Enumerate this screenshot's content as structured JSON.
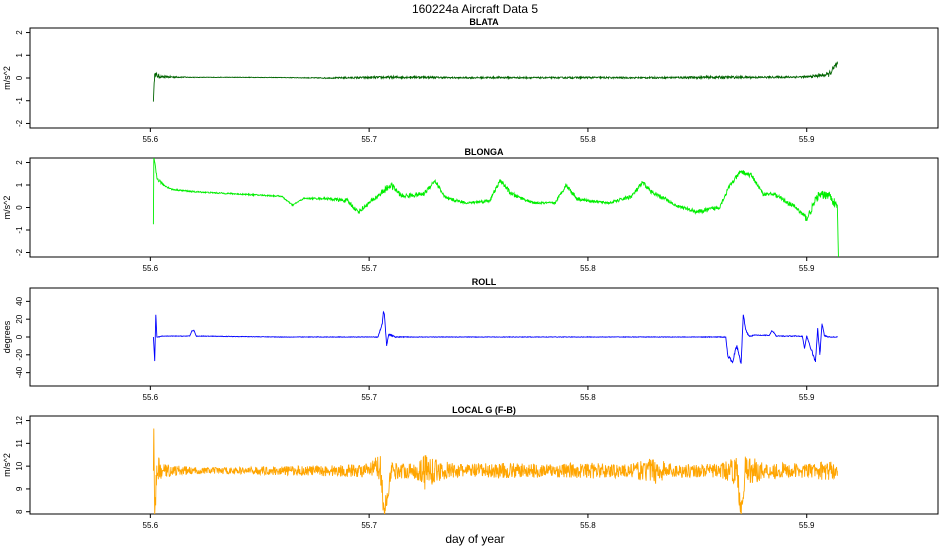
{
  "figure": {
    "title": "160224a   Aircraft Data 5",
    "xlabel": "day of year",
    "x_range": [
      55.545,
      55.96
    ],
    "x_ticks": [
      "55.6",
      "55.7",
      "55.8",
      "55.9"
    ]
  },
  "chart_data": [
    {
      "type": "line",
      "title": "BLATA",
      "ylabel": "m/s^2",
      "ylim": [
        -2.2,
        2.2
      ],
      "yticks": [
        -2,
        -1,
        0,
        1,
        2
      ],
      "ytick_labels": [
        "-2",
        "-1",
        "0",
        "1",
        "2"
      ],
      "color": "#006400",
      "x": [
        55.6014,
        55.602,
        55.603,
        55.605,
        55.62,
        55.64,
        55.66,
        55.68,
        55.7,
        55.72,
        55.74,
        55.76,
        55.78,
        55.8,
        55.82,
        55.84,
        55.86,
        55.88,
        55.9,
        55.91,
        55.914
      ],
      "values": [
        -1.0,
        0.2,
        0.1,
        0.05,
        0.03,
        0.03,
        0.02,
        0.0,
        0.02,
        0.04,
        0.01,
        0.02,
        0.01,
        0.02,
        0.01,
        0.02,
        0.03,
        0.03,
        0.05,
        0.15,
        0.6
      ],
      "noise": [
        0.05,
        0.15,
        0.1,
        0.05,
        0.01,
        0.01,
        0.01,
        0.02,
        0.05,
        0.05,
        0.03,
        0.04,
        0.03,
        0.04,
        0.03,
        0.04,
        0.06,
        0.04,
        0.04,
        0.1,
        0.2
      ]
    },
    {
      "type": "line",
      "title": "BLONGA",
      "ylabel": "m/s^2",
      "ylim": [
        -2.2,
        2.2
      ],
      "yticks": [
        -2,
        -1,
        0,
        1,
        2
      ],
      "ytick_labels": [
        "-2",
        "-1",
        "0",
        "1",
        "2"
      ],
      "color": "#00ee00",
      "x": [
        55.6014,
        55.6016,
        55.603,
        55.606,
        55.61,
        55.62,
        55.64,
        55.66,
        55.665,
        55.67,
        55.68,
        55.69,
        55.695,
        55.7,
        55.71,
        55.715,
        55.725,
        55.73,
        55.735,
        55.745,
        55.755,
        55.76,
        55.765,
        55.775,
        55.785,
        55.79,
        55.795,
        55.8,
        55.81,
        55.82,
        55.825,
        55.83,
        55.835,
        55.84,
        55.85,
        55.86,
        55.865,
        55.87,
        55.875,
        55.88,
        55.885,
        55.895,
        55.9,
        55.905,
        55.91,
        55.914,
        55.9145
      ],
      "values": [
        -0.7,
        2.2,
        1.3,
        1.0,
        0.8,
        0.7,
        0.6,
        0.5,
        0.1,
        0.4,
        0.4,
        0.3,
        -0.2,
        0.2,
        1.0,
        0.5,
        0.6,
        1.2,
        0.4,
        0.2,
        0.3,
        1.2,
        0.6,
        0.2,
        0.2,
        1.0,
        0.4,
        0.3,
        0.2,
        0.5,
        1.1,
        0.6,
        0.4,
        0.1,
        -0.2,
        0.0,
        1.0,
        1.6,
        1.4,
        0.6,
        0.6,
        0.0,
        -0.5,
        0.5,
        0.6,
        0.0,
        -2.2
      ],
      "noise": [
        0.1,
        0.1,
        0.1,
        0.05,
        0.03,
        0.03,
        0.03,
        0.03,
        0.03,
        0.03,
        0.05,
        0.1,
        0.1,
        0.1,
        0.15,
        0.1,
        0.1,
        0.1,
        0.1,
        0.05,
        0.08,
        0.1,
        0.1,
        0.05,
        0.05,
        0.1,
        0.1,
        0.05,
        0.05,
        0.1,
        0.1,
        0.1,
        0.1,
        0.05,
        0.1,
        0.1,
        0.1,
        0.1,
        0.1,
        0.08,
        0.08,
        0.1,
        0.15,
        0.2,
        0.2,
        0.2,
        0.1
      ]
    },
    {
      "type": "line",
      "title": "ROLL",
      "ylabel": "degrees",
      "ylim": [
        -55,
        55
      ],
      "yticks": [
        -40,
        -20,
        0,
        20,
        40
      ],
      "ytick_labels": [
        "-40",
        "-20",
        "0",
        "20",
        "40"
      ],
      "color": "#0000ff",
      "x": [
        55.6014,
        55.602,
        55.6025,
        55.603,
        55.604,
        55.605,
        55.618,
        55.619,
        55.62,
        55.621,
        55.622,
        55.66,
        55.7,
        55.704,
        55.706,
        55.7065,
        55.707,
        55.708,
        55.709,
        55.712,
        55.72,
        55.8,
        55.85,
        55.863,
        55.864,
        55.866,
        55.868,
        55.87,
        55.871,
        55.872,
        55.873,
        55.874,
        55.876,
        55.883,
        55.884,
        55.885,
        55.886,
        55.898,
        55.899,
        55.9,
        55.904,
        55.905,
        55.906,
        55.907,
        55.908,
        55.91,
        55.914
      ],
      "values": [
        0,
        -27,
        25,
        0,
        0,
        1,
        1,
        7,
        7,
        1,
        1,
        0,
        0,
        0,
        15,
        28,
        25,
        -10,
        3,
        0,
        0,
        0,
        0,
        0,
        -22,
        -28,
        -10,
        -30,
        25,
        10,
        3,
        1,
        2,
        2,
        7,
        5,
        1,
        1,
        -13,
        1,
        -28,
        10,
        -20,
        15,
        2,
        0,
        0
      ],
      "noise": [
        0,
        1,
        1,
        1,
        0.3,
        0.3,
        0.3,
        0.3,
        0.3,
        0.3,
        0.3,
        0.3,
        0.3,
        0.5,
        1,
        1,
        1,
        1,
        1,
        0.5,
        0.3,
        0.3,
        0.3,
        0.5,
        2,
        2,
        2,
        2,
        2,
        1,
        1,
        0.5,
        0.5,
        0.5,
        0.5,
        0.5,
        0.5,
        0.5,
        1,
        0.5,
        2,
        2,
        2,
        2,
        1,
        0.5,
        0.3
      ]
    },
    {
      "type": "line",
      "title": "LOCAL G (F-B)",
      "ylabel": "m/s^2",
      "ylim": [
        7.9,
        12.2
      ],
      "yticks": [
        8,
        9,
        10,
        11,
        12
      ],
      "ytick_labels": [
        "8",
        "9",
        "10",
        "11",
        "12"
      ],
      "color": "#ffa500",
      "x": [
        55.6014,
        55.6016,
        55.602,
        55.603,
        55.606,
        55.62,
        55.64,
        55.66,
        55.68,
        55.7,
        55.705,
        55.707,
        55.71,
        55.72,
        55.726,
        55.73,
        55.74,
        55.76,
        55.78,
        55.8,
        55.82,
        55.83,
        55.84,
        55.86,
        55.868,
        55.87,
        55.872,
        55.88,
        55.9,
        55.91,
        55.914
      ],
      "values": [
        9.8,
        11.6,
        7.9,
        9.8,
        9.8,
        9.8,
        9.8,
        9.8,
        9.8,
        9.8,
        10.0,
        7.9,
        9.8,
        9.8,
        9.8,
        9.8,
        9.8,
        9.8,
        9.8,
        9.8,
        9.8,
        9.8,
        9.8,
        9.8,
        9.8,
        8.1,
        9.8,
        9.8,
        9.8,
        9.8,
        9.8
      ],
      "noise": [
        0.2,
        0.3,
        0.3,
        0.7,
        0.3,
        0.15,
        0.15,
        0.2,
        0.25,
        0.3,
        0.6,
        0.5,
        0.4,
        0.3,
        0.9,
        0.5,
        0.3,
        0.35,
        0.3,
        0.35,
        0.3,
        0.6,
        0.3,
        0.3,
        0.6,
        0.5,
        0.7,
        0.4,
        0.3,
        0.45,
        0.3
      ]
    }
  ]
}
